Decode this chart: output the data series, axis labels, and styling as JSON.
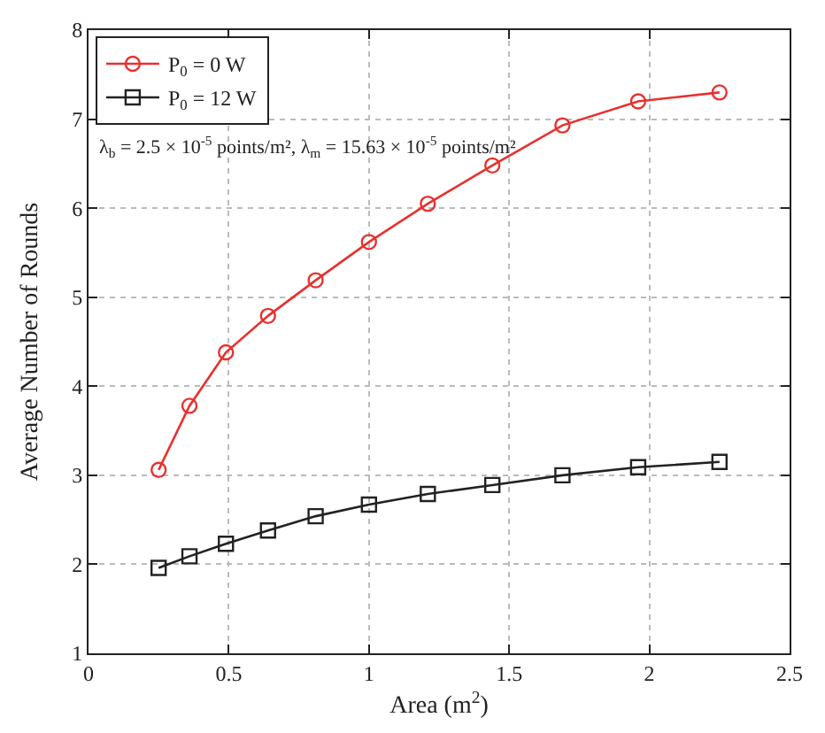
{
  "chart_data": {
    "type": "line",
    "xlabel": "Area (m$^{2}$)",
    "ylabel": "Average Number of Rounds",
    "x": [
      0.25,
      0.36,
      0.49,
      0.64,
      0.81,
      1.0,
      1.21,
      1.44,
      1.69,
      1.96,
      2.25
    ],
    "series": [
      {
        "name": "P$_{0}$ = 0 W",
        "color": "#e8302e",
        "marker": "circle",
        "values": [
          3.06,
          3.78,
          4.38,
          4.79,
          5.19,
          5.62,
          6.05,
          6.48,
          6.93,
          7.2,
          7.3
        ]
      },
      {
        "name": "P$_{0}$ = 12 W",
        "color": "#222222",
        "marker": "square",
        "values": [
          1.96,
          2.09,
          2.23,
          2.38,
          2.54,
          2.67,
          2.79,
          2.89,
          3.0,
          3.09,
          3.15
        ]
      }
    ],
    "annotations": [
      "λ$_{b}$ = 2.5 × 10$^{-5}$ points/m², λ$_{m}$ = 15.63 × 10$^{-5}$ points/m²"
    ],
    "xlim": [
      0,
      2.5
    ],
    "xticks": [
      0,
      0.5,
      1,
      1.5,
      2,
      2.5
    ],
    "ylim": [
      1,
      8
    ],
    "yticks": [
      1,
      2,
      3,
      4,
      5,
      6,
      7,
      8
    ],
    "grid": true,
    "legend": "top left",
    "line_style": "solid"
  }
}
